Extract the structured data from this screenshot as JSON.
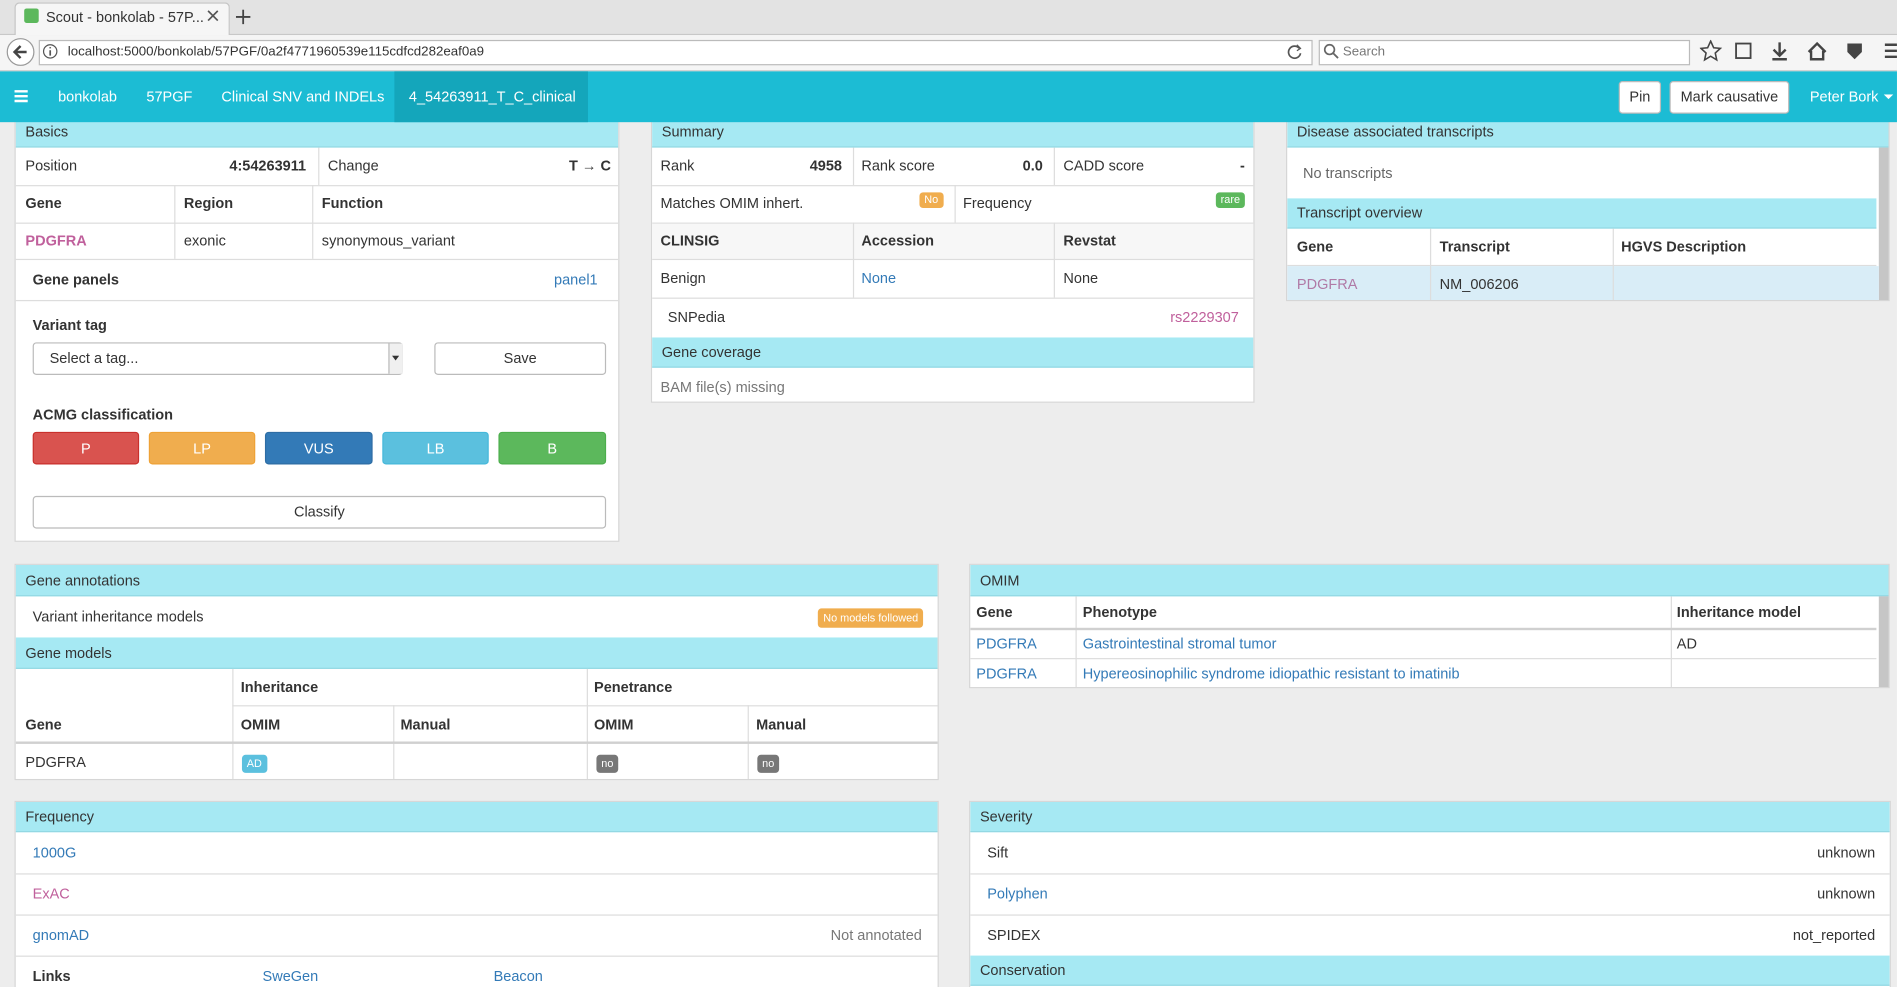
{
  "browser": {
    "tab_title": "Scout - bonkolab - 57P...",
    "url": "localhost:5000/bonkolab/57PGF/0a2f4771960539e115cdfcd282eaf0a9",
    "search_placeholder": "Search"
  },
  "navbar": {
    "items": [
      "bonkolab",
      "57PGF",
      "Clinical SNV and INDELs",
      "4_54263911_T_C_clinical"
    ],
    "buttons": [
      "Pin",
      "Mark causative"
    ],
    "user": "Peter Bork"
  },
  "basics": {
    "title": "Basics",
    "position_label": "Position",
    "position": "4:54263911",
    "change_label": "Change",
    "change": "T → C",
    "table": {
      "header": [
        "Gene",
        "Region",
        "Function"
      ],
      "rows": [
        [
          "PDGFRA",
          "exonic",
          "synonymous_variant"
        ]
      ]
    },
    "gene_panels_label": "Gene panels",
    "gene_panel": "panel1",
    "variant_tag_label": "Variant tag",
    "tag_select": "Select a tag...",
    "save": "Save",
    "acmg_label": "ACMG classification",
    "acmg": [
      "P",
      "LP",
      "VUS",
      "LB",
      "B"
    ],
    "classify": "Classify"
  },
  "summary": {
    "title": "Summary",
    "rank_label": "Rank",
    "rank": 4958,
    "rank_score_label": "Rank score",
    "rank_score": "0.0",
    "cadd_label": "CADD score",
    "cadd": "-",
    "omim_inheritance_label": "Matches OMIM inhert.",
    "omim_inheritance": "No",
    "frequency_label": "Frequency",
    "frequency": "rare",
    "clinsig_table": {
      "header": [
        "CLINSIG",
        "Accession",
        "Revstat"
      ],
      "rows": [
        [
          "Benign",
          "None",
          "None"
        ]
      ]
    },
    "snpedia_label": "SNPedia",
    "snpedia": "rs2229307",
    "gene_coverage_title": "Gene coverage",
    "gene_coverage": "BAM file(s) missing"
  },
  "transcripts": {
    "disease_title": "Disease associated transcripts",
    "disease_empty": "No transcripts",
    "overview_title": "Transcript overview",
    "header": [
      "Gene",
      "Transcript",
      "HGVS Description"
    ],
    "rows": [
      [
        "PDGFRA",
        "NM_006206"
      ]
    ]
  },
  "gene_annotations": {
    "title": "Gene annotations",
    "inheritance_models_label": "Variant inheritance models",
    "inheritance_models": "No models followed",
    "gene_models_title": "Gene models",
    "group_header": [
      "Inheritance",
      "Penetrance"
    ],
    "header": [
      "Gene",
      "OMIM",
      "Manual",
      "OMIM",
      "Manual"
    ],
    "row": {
      "gene": "PDGFRA",
      "inheritance_omim": "AD",
      "penetrance_omim": "no",
      "penetrance_manual": "no"
    }
  },
  "omim": {
    "title": "OMIM",
    "header": [
      "Gene",
      "Phenotype",
      "Inheritance model"
    ],
    "rows": [
      [
        "PDGFRA",
        "Gastrointestinal stromal tumor",
        "AD"
      ],
      [
        "PDGFRA",
        "Hypereosinophilic syndrome idiopathic resistant to imatinib"
      ]
    ]
  },
  "frequency": {
    "title": "Frequency",
    "sources": [
      "1000G",
      "ExAC",
      "gnomAD"
    ],
    "gnomad_value": "Not annotated",
    "links_label": "Links",
    "links": [
      "SweGen",
      "Beacon"
    ]
  },
  "severity": {
    "title": "Severity",
    "rows": [
      [
        "Sift",
        "unknown"
      ],
      [
        "Polyphen",
        "unknown"
      ],
      [
        "SPIDEX",
        "not_reported"
      ]
    ],
    "conservation_title": "Conservation"
  }
}
